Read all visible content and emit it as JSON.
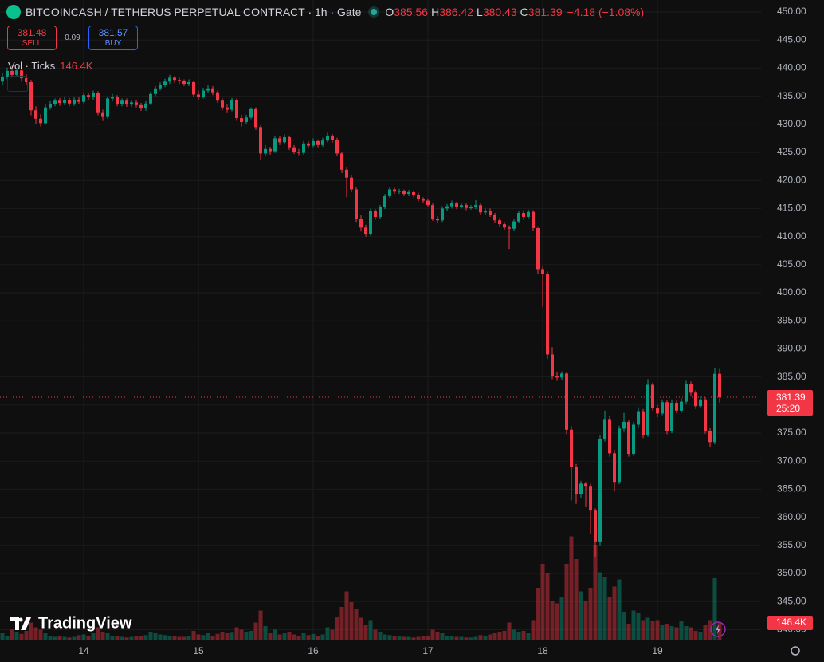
{
  "header": {
    "symbol_title": "BITCOINCASH / TETHERUS PERPETUAL CONTRACT · 1h · Gate",
    "ohlc_letters": [
      "O",
      "H",
      "L",
      "C"
    ],
    "change": "−4.18 (−1.08%)"
  },
  "trade": {
    "sell_price": 381.48,
    "sell_label": "SELL",
    "spread": 0.09,
    "buy_price": 381.57,
    "buy_label": "BUY"
  },
  "countdown": "25:20",
  "logo": "TradingView",
  "chart_data": {
    "type": "candlestick",
    "categories": [
      null,
      null,
      null,
      null,
      null,
      null,
      null,
      null,
      null,
      null,
      null,
      null,
      null,
      null,
      null,
      null,
      null,
      "14",
      null,
      null,
      null,
      null,
      null,
      null,
      null,
      null,
      null,
      null,
      null,
      null,
      null,
      null,
      null,
      null,
      null,
      null,
      null,
      null,
      null,
      null,
      null,
      "15",
      null,
      null,
      null,
      null,
      null,
      null,
      null,
      null,
      null,
      null,
      null,
      null,
      null,
      null,
      null,
      null,
      null,
      null,
      null,
      null,
      null,
      null,
      null,
      "16",
      null,
      null,
      null,
      null,
      null,
      null,
      null,
      null,
      null,
      null,
      null,
      null,
      null,
      null,
      null,
      null,
      null,
      null,
      null,
      null,
      null,
      null,
      null,
      "17",
      null,
      null,
      null,
      null,
      null,
      null,
      null,
      null,
      null,
      null,
      null,
      null,
      null,
      null,
      null,
      null,
      null,
      null,
      null,
      null,
      null,
      null,
      null,
      "18",
      null,
      null,
      null,
      null,
      null,
      null,
      null,
      null,
      null,
      null,
      null,
      null,
      null,
      null,
      null,
      null,
      null,
      null,
      null,
      null,
      null,
      null,
      null,
      "19",
      null,
      null,
      null,
      null,
      null,
      null,
      null,
      null,
      null,
      null,
      null,
      null,
      null
    ],
    "open": [
      437.6,
      438.5,
      439.5,
      438.8,
      439.6,
      438.2,
      437.5,
      432.5,
      431.0,
      430.2,
      433.0,
      433.6,
      434.2,
      433.8,
      434.3,
      433.7,
      434.4,
      434.0,
      435.2,
      434.8,
      435.6,
      432.0,
      431.3,
      434.6,
      434.9,
      433.6,
      434.2,
      433.5,
      433.9,
      433.4,
      432.8,
      433.7,
      435.4,
      436.4,
      437.0,
      437.6,
      438.3,
      437.9,
      437.7,
      437.2,
      437.5,
      435.3,
      434.9,
      436.0,
      436.4,
      435.7,
      434.2,
      433.0,
      432.6,
      434.3,
      431.1,
      430.4,
      431.2,
      432.7,
      429.5,
      424.8,
      425.6,
      425.2,
      427.5,
      426.8,
      427.7,
      425.9,
      425.1,
      424.9,
      426.6,
      426.2,
      427.0,
      426.3,
      427.1,
      428.0,
      427.2,
      424.8,
      421.9,
      420.5,
      418.4,
      413.2,
      411.6,
      410.4,
      414.5,
      413.5,
      415.2,
      417.2,
      418.4,
      418.0,
      418.1,
      417.6,
      417.9,
      417.4,
      416.7,
      416.4,
      415.6,
      413.2,
      412.9,
      415.0,
      415.4,
      415.9,
      415.3,
      415.6,
      415.1,
      415.2,
      415.6,
      414.3,
      414.6,
      413.9,
      412.9,
      412.2,
      411.6,
      411.4,
      412.7,
      414.2,
      413.5,
      414.4,
      411.5,
      404.2,
      403.4,
      389.0,
      385.2,
      384.9,
      385.6,
      375.6,
      369.0,
      364.2,
      366.0,
      365.6,
      361.2,
      355.7,
      374.0,
      377.5,
      371.4,
      366.3,
      375.8,
      377.0,
      371.3,
      376.5,
      378.9,
      374.6,
      383.6,
      379.5,
      378.5,
      380.5,
      375.3,
      380.4,
      379.0,
      380.6,
      383.8,
      382.2,
      379.8,
      381.0,
      375.4,
      373.4,
      385.56
    ],
    "high": [
      439.2,
      440.1,
      440.4,
      440.0,
      440.0,
      438.9,
      437.9,
      433.2,
      431.8,
      433.5,
      434.1,
      434.6,
      434.7,
      434.8,
      434.7,
      434.9,
      434.8,
      435.7,
      435.6,
      436.0,
      435.9,
      432.6,
      435.0,
      435.4,
      435.2,
      434.6,
      434.6,
      434.3,
      434.3,
      433.8,
      434.1,
      435.8,
      436.8,
      437.5,
      438.1,
      438.8,
      438.6,
      438.3,
      438.0,
      438.0,
      437.8,
      436.0,
      436.5,
      437.0,
      436.8,
      436.0,
      434.6,
      433.5,
      434.7,
      434.6,
      431.7,
      431.7,
      433.0,
      433.0,
      429.8,
      426.3,
      426.0,
      428.0,
      427.9,
      428.2,
      428.0,
      426.3,
      425.6,
      427.0,
      427.0,
      427.5,
      427.3,
      427.6,
      428.5,
      428.3,
      427.6,
      425.0,
      422.3,
      421.0,
      418.9,
      413.8,
      412.1,
      415.0,
      414.9,
      415.6,
      417.6,
      418.9,
      418.7,
      418.5,
      418.4,
      418.3,
      418.2,
      417.8,
      417.0,
      416.8,
      415.9,
      413.6,
      415.4,
      415.8,
      416.4,
      416.2,
      416.0,
      415.9,
      415.6,
      416.5,
      415.9,
      415.0,
      415.0,
      414.2,
      413.3,
      412.6,
      412.0,
      413.1,
      414.6,
      414.7,
      414.8,
      414.7,
      411.8,
      404.8,
      403.8,
      390.3,
      385.8,
      386.0,
      385.9,
      376.2,
      369.5,
      366.5,
      366.3,
      366.0,
      361.6,
      374.6,
      379.0,
      378.0,
      372.0,
      376.3,
      378.6,
      377.4,
      377.0,
      379.6,
      379.3,
      384.6,
      384.0,
      380.0,
      381.0,
      380.9,
      381.0,
      380.8,
      381.2,
      384.3,
      384.2,
      382.6,
      381.5,
      381.4,
      375.9,
      386.6,
      386.42
    ],
    "low": [
      437.0,
      438.0,
      438.3,
      438.4,
      437.6,
      437.0,
      431.6,
      430.0,
      429.6,
      429.9,
      432.6,
      433.2,
      433.3,
      433.4,
      433.2,
      433.3,
      433.6,
      433.7,
      434.3,
      434.4,
      431.6,
      430.6,
      431.0,
      434.1,
      433.2,
      433.2,
      433.1,
      433.1,
      433.0,
      432.4,
      432.4,
      433.4,
      435.0,
      436.0,
      436.6,
      437.2,
      437.4,
      437.2,
      436.8,
      436.8,
      434.8,
      434.4,
      434.6,
      435.6,
      435.2,
      433.8,
      432.5,
      432.0,
      432.3,
      430.6,
      429.6,
      430.0,
      430.9,
      429.0,
      423.6,
      424.3,
      424.6,
      424.9,
      426.3,
      426.4,
      425.4,
      424.7,
      424.5,
      424.6,
      425.8,
      425.9,
      425.9,
      426.0,
      426.8,
      426.7,
      424.3,
      421.3,
      417.0,
      417.9,
      412.6,
      410.9,
      410.0,
      410.1,
      413.0,
      413.2,
      414.9,
      416.9,
      417.6,
      417.6,
      417.2,
      417.2,
      417.0,
      416.3,
      416.0,
      415.2,
      412.8,
      412.5,
      412.6,
      414.6,
      415.0,
      414.9,
      415.0,
      414.7,
      414.8,
      414.9,
      413.9,
      413.9,
      413.5,
      412.5,
      411.8,
      411.2,
      407.8,
      411.0,
      412.4,
      413.0,
      413.1,
      411.0,
      403.4,
      397.5,
      388.2,
      384.6,
      384.3,
      384.4,
      374.8,
      363.0,
      362.4,
      363.5,
      361.8,
      357.0,
      353.0,
      355.0,
      373.5,
      370.8,
      364.6,
      365.9,
      375.2,
      370.8,
      370.9,
      376.0,
      374.1,
      374.3,
      379.0,
      377.8,
      378.2,
      374.8,
      375.0,
      378.5,
      378.6,
      380.2,
      381.7,
      379.3,
      379.4,
      374.9,
      372.5,
      373.0,
      380.43
    ],
    "close": [
      438.5,
      439.5,
      438.8,
      439.6,
      438.2,
      437.5,
      432.5,
      431.0,
      430.2,
      433.0,
      433.6,
      434.2,
      433.8,
      434.3,
      433.7,
      434.4,
      434.0,
      435.2,
      434.8,
      435.6,
      432.0,
      431.3,
      434.6,
      434.9,
      433.6,
      434.2,
      433.5,
      433.9,
      433.4,
      432.8,
      433.7,
      435.4,
      436.4,
      437.0,
      437.6,
      438.3,
      437.9,
      437.7,
      437.2,
      437.5,
      435.3,
      434.9,
      436.0,
      436.4,
      435.7,
      434.2,
      433.0,
      432.6,
      434.3,
      431.1,
      430.4,
      431.2,
      432.7,
      429.5,
      424.8,
      425.6,
      425.2,
      427.5,
      426.8,
      427.7,
      425.9,
      425.1,
      424.9,
      426.6,
      426.2,
      427.0,
      426.3,
      427.1,
      428.0,
      427.2,
      424.8,
      421.9,
      420.5,
      418.4,
      413.2,
      411.6,
      410.4,
      414.5,
      413.5,
      415.2,
      417.2,
      418.4,
      418.0,
      418.1,
      417.6,
      417.9,
      417.4,
      416.7,
      416.4,
      415.6,
      413.2,
      412.9,
      415.0,
      415.4,
      415.9,
      415.3,
      415.6,
      415.1,
      415.2,
      415.6,
      414.3,
      414.6,
      413.9,
      412.9,
      412.2,
      411.6,
      411.4,
      412.7,
      414.2,
      413.5,
      414.4,
      411.5,
      404.2,
      403.4,
      389.0,
      385.2,
      384.9,
      385.6,
      375.6,
      369.0,
      364.2,
      366.0,
      365.6,
      361.2,
      355.7,
      374.0,
      377.5,
      371.4,
      366.3,
      375.8,
      377.0,
      371.3,
      376.5,
      378.9,
      374.6,
      383.6,
      379.5,
      378.5,
      380.5,
      375.3,
      380.4,
      379.0,
      380.6,
      383.8,
      382.2,
      379.8,
      381.0,
      375.4,
      373.4,
      385.56,
      381.39
    ],
    "up_color": "#089981",
    "down_color": "#f23645",
    "ylim": [
      338.07,
      452.13
    ],
    "yticks": [
      {
        "value": 340,
        "label": "340.00"
      },
      {
        "value": 345,
        "label": "345.00"
      },
      {
        "value": 350,
        "label": "350.00"
      },
      {
        "value": 355,
        "label": "355.00"
      },
      {
        "value": 360,
        "label": "360.00"
      },
      {
        "value": 365,
        "label": "365.00"
      },
      {
        "value": 370,
        "label": "370.00"
      },
      {
        "value": 375,
        "label": "375.00"
      },
      {
        "value": 380,
        "label": "380.00"
      },
      {
        "value": 385,
        "label": "385.00"
      },
      {
        "value": 390,
        "label": "390.00"
      },
      {
        "value": 395,
        "label": "395.00"
      },
      {
        "value": 400,
        "label": "400.00"
      },
      {
        "value": 405,
        "label": "405.00"
      },
      {
        "value": 410,
        "label": "410.00"
      },
      {
        "value": 415,
        "label": "415.00"
      },
      {
        "value": 420,
        "label": "420.00"
      },
      {
        "value": 425,
        "label": "425.00"
      },
      {
        "value": 430,
        "label": "430.00"
      },
      {
        "value": 435,
        "label": "435.00"
      },
      {
        "value": 440,
        "label": "440.00"
      },
      {
        "value": 445,
        "label": "445.00"
      },
      {
        "value": 450,
        "label": "450.00"
      }
    ],
    "grid": true,
    "volume": {
      "name": "Vol · Ticks",
      "vlim": [
        0,
        1000000
      ],
      "values": [
        60000,
        40000,
        90000,
        70000,
        55000,
        80000,
        150000,
        110000,
        90000,
        60000,
        40000,
        30000,
        35000,
        30000,
        25000,
        30000,
        45000,
        50000,
        40000,
        60000,
        110000,
        70000,
        60000,
        40000,
        35000,
        30000,
        25000,
        30000,
        40000,
        35000,
        45000,
        70000,
        60000,
        50000,
        45000,
        40000,
        35000,
        30000,
        30000,
        35000,
        80000,
        50000,
        45000,
        60000,
        40000,
        55000,
        70000,
        60000,
        65000,
        110000,
        90000,
        70000,
        80000,
        150000,
        250000,
        120000,
        60000,
        90000,
        50000,
        60000,
        70000,
        50000,
        40000,
        60000,
        45000,
        55000,
        40000,
        50000,
        110000,
        90000,
        200000,
        280000,
        410000,
        320000,
        260000,
        190000,
        130000,
        170000,
        90000,
        70000,
        50000,
        45000,
        40000,
        35000,
        30000,
        30000,
        25000,
        30000,
        35000,
        40000,
        90000,
        70000,
        60000,
        40000,
        35000,
        30000,
        30000,
        25000,
        25000,
        30000,
        45000,
        40000,
        50000,
        60000,
        70000,
        80000,
        150000,
        90000,
        70000,
        80000,
        60000,
        170000,
        440000,
        640000,
        560000,
        330000,
        310000,
        360000,
        640000,
        870000,
        680000,
        410000,
        330000,
        440000,
        800000,
        570000,
        530000,
        360000,
        450000,
        510000,
        240000,
        140000,
        250000,
        230000,
        170000,
        190000,
        160000,
        170000,
        130000,
        140000,
        120000,
        110000,
        160000,
        120000,
        110000,
        80000,
        70000,
        130000,
        170000,
        520000,
        146400
      ],
      "value_labels": [
        null,
        null,
        null,
        null,
        null,
        null,
        null,
        null,
        null,
        null,
        null,
        null,
        null,
        null,
        null,
        null,
        null,
        null,
        null,
        null,
        null,
        null,
        null,
        null,
        null,
        null,
        null,
        null,
        null,
        null,
        null,
        null,
        null,
        null,
        null,
        null,
        null,
        null,
        null,
        null,
        null,
        null,
        null,
        null,
        null,
        null,
        null,
        null,
        null,
        null,
        null,
        null,
        null,
        null,
        null,
        null,
        null,
        null,
        null,
        null,
        null,
        null,
        null,
        null,
        null,
        null,
        null,
        null,
        null,
        null,
        null,
        null,
        null,
        null,
        null,
        null,
        null,
        null,
        null,
        null,
        null,
        null,
        null,
        null,
        null,
        null,
        null,
        null,
        null,
        null,
        null,
        null,
        null,
        null,
        null,
        null,
        null,
        null,
        null,
        null,
        null,
        null,
        null,
        null,
        null,
        null,
        null,
        null,
        null,
        null,
        null,
        null,
        null,
        null,
        null,
        null,
        null,
        null,
        null,
        null,
        null,
        null,
        null,
        null,
        null,
        null,
        null,
        null,
        null,
        null,
        null,
        null,
        null,
        null,
        null,
        null,
        null,
        null,
        null,
        null,
        null,
        null,
        null,
        null,
        null,
        null,
        null,
        null,
        null,
        null,
        "146.4K"
      ]
    }
  }
}
